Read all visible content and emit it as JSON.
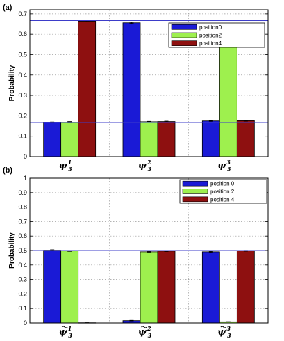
{
  "colors": {
    "axis": "#000000",
    "grid": "#9a9a9a",
    "refline": "#3d3dc9",
    "errorbar": "#000000"
  },
  "chart_data": [
    {
      "type": "bar",
      "panel_label": "(a)",
      "ylabel": "Probability",
      "ylim": [
        0,
        0.72
      ],
      "yticks": [
        0,
        0.1,
        0.2,
        0.3,
        0.4,
        0.5,
        0.6,
        0.7
      ],
      "grid": "dotted-horizontal",
      "legend_position": "top-right",
      "categories": [
        {
          "base": "ψ",
          "sup": "1",
          "sub": "3"
        },
        {
          "base": "ψ",
          "sup": "2",
          "sub": "3"
        },
        {
          "base": "ψ",
          "sup": "3",
          "sub": "3"
        }
      ],
      "series": [
        {
          "name": "position0",
          "color": "#1a1ad6",
          "values": [
            0.168,
            0.656,
            0.175
          ],
          "errors": [
            0.002,
            0.003,
            0.002
          ]
        },
        {
          "name": "position2",
          "color": "#9ef04e",
          "values": [
            0.169,
            0.171,
            0.649
          ],
          "errors": [
            0.003,
            0.002,
            0.003
          ]
        },
        {
          "name": "position4",
          "color": "#8e1010",
          "values": [
            0.664,
            0.172,
            0.176
          ],
          "errors": [
            0.003,
            0.002,
            0.002
          ]
        }
      ],
      "reference_lines": [
        0.667,
        0.167
      ]
    },
    {
      "type": "bar",
      "panel_label": "(b)",
      "ylabel": "Probability",
      "ylim": [
        0,
        1
      ],
      "yticks": [
        0,
        0.1,
        0.2,
        0.3,
        0.4,
        0.5,
        0.6,
        0.7,
        0.8,
        0.9,
        1
      ],
      "grid": "dotted-horizontal",
      "legend_position": "top-right",
      "categories": [
        {
          "base": "ψ",
          "sup": "1",
          "sub": "3",
          "tilde": true
        },
        {
          "base": "ψ",
          "sup": "2",
          "sub": "3",
          "tilde": true
        },
        {
          "base": "ψ",
          "sup": "3",
          "sub": "3",
          "tilde": true
        }
      ],
      "series": [
        {
          "name": "position 0",
          "color": "#1a1ad6",
          "values": [
            0.502,
            0.016,
            0.491
          ],
          "errors": [
            0.003,
            0.002,
            0.004
          ]
        },
        {
          "name": "position 2",
          "color": "#9ef04e",
          "values": [
            0.497,
            0.491,
            0.008
          ],
          "errors": [
            0.003,
            0.004,
            0.001
          ]
        },
        {
          "name": "position 4",
          "color": "#8e1010",
          "values": [
            0.0015,
            0.496,
            0.498
          ],
          "errors": [
            0.0005,
            0.003,
            0.003
          ]
        }
      ],
      "reference_lines": [
        0.5
      ]
    }
  ]
}
